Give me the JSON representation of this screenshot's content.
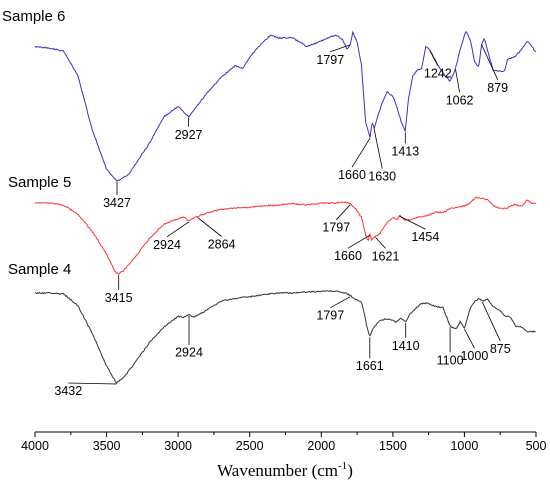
{
  "chart_data": {
    "type": "line",
    "xlabel": "Wavenumber (cm",
    "xlabel_superscript": "-1",
    "xlabel_suffix": ")",
    "ylabel": "",
    "xlim": [
      4000,
      500
    ],
    "x_reversed": true,
    "x_ticks": [
      "4000",
      "3500",
      "3000",
      "2500",
      "2000",
      "1500",
      "1000",
      "500"
    ],
    "grid": false,
    "series": [
      {
        "name": "Sample 6",
        "color": "#3333cc",
        "points": [
          [
            4000,
            0.08
          ],
          [
            3900,
            0.09
          ],
          [
            3800,
            0.11
          ],
          [
            3700,
            0.28
          ],
          [
            3600,
            0.65
          ],
          [
            3500,
            0.92
          ],
          [
            3427,
            1.0
          ],
          [
            3350,
            0.96
          ],
          [
            3200,
            0.74
          ],
          [
            3100,
            0.56
          ],
          [
            3000,
            0.49
          ],
          [
            2927,
            0.56
          ],
          [
            2880,
            0.5
          ],
          [
            2800,
            0.4
          ],
          [
            2700,
            0.29
          ],
          [
            2600,
            0.21
          ],
          [
            2550,
            0.23
          ],
          [
            2500,
            0.15
          ],
          [
            2400,
            0.04
          ],
          [
            2350,
            0.0
          ],
          [
            2300,
            0.02
          ],
          [
            2200,
            0.02
          ],
          [
            2100,
            0.08
          ],
          [
            2000,
            0.04
          ],
          [
            1900,
            0.0
          ],
          [
            1850,
            0.03
          ],
          [
            1820,
            0.1
          ],
          [
            1797,
            0.06
          ],
          [
            1780,
            -0.02
          ],
          [
            1750,
            0.05
          ],
          [
            1720,
            0.2
          ],
          [
            1690,
            0.6
          ],
          [
            1660,
            0.7
          ],
          [
            1645,
            0.6
          ],
          [
            1630,
            0.64
          ],
          [
            1610,
            0.57
          ],
          [
            1580,
            0.48
          ],
          [
            1540,
            0.39
          ],
          [
            1500,
            0.42
          ],
          [
            1470,
            0.5
          ],
          [
            1440,
            0.6
          ],
          [
            1413,
            0.66
          ],
          [
            1390,
            0.43
          ],
          [
            1360,
            0.28
          ],
          [
            1330,
            0.24
          ],
          [
            1300,
            0.23
          ],
          [
            1270,
            0.08
          ],
          [
            1242,
            0.1
          ],
          [
            1200,
            0.18
          ],
          [
            1150,
            0.26
          ],
          [
            1100,
            0.32
          ],
          [
            1062,
            0.23
          ],
          [
            1030,
            0.1
          ],
          [
            990,
            -0.03
          ],
          [
            960,
            0.03
          ],
          [
            930,
            0.18
          ],
          [
            900,
            0.22
          ],
          [
            879,
            0.06
          ],
          [
            860,
            0.02
          ],
          [
            840,
            0.1
          ],
          [
            800,
            0.24
          ],
          [
            760,
            0.25
          ],
          [
            720,
            0.25
          ],
          [
            700,
            0.17
          ],
          [
            650,
            0.15
          ],
          [
            600,
            0.1
          ],
          [
            560,
            0.04
          ],
          [
            530,
            0.08
          ],
          [
            500,
            0.12
          ]
        ]
      },
      {
        "name": "Sample 5",
        "color": "#ff3333",
        "points": [
          [
            4000,
            0.0
          ],
          [
            3900,
            0.0
          ],
          [
            3800,
            0.03
          ],
          [
            3700,
            0.16
          ],
          [
            3600,
            0.4
          ],
          [
            3500,
            0.72
          ],
          [
            3440,
            0.97
          ],
          [
            3415,
            1.0
          ],
          [
            3380,
            0.95
          ],
          [
            3300,
            0.76
          ],
          [
            3200,
            0.5
          ],
          [
            3100,
            0.3
          ],
          [
            3000,
            0.22
          ],
          [
            2960,
            0.2
          ],
          [
            2924,
            0.25
          ],
          [
            2890,
            0.21
          ],
          [
            2864,
            0.19
          ],
          [
            2800,
            0.14
          ],
          [
            2700,
            0.09
          ],
          [
            2600,
            0.07
          ],
          [
            2500,
            0.06
          ],
          [
            2400,
            0.04
          ],
          [
            2300,
            0.03
          ],
          [
            2200,
            0.01
          ],
          [
            2100,
            0.03
          ],
          [
            2000,
            0.0
          ],
          [
            1900,
            0.0
          ],
          [
            1850,
            -0.02
          ],
          [
            1810,
            0.0
          ],
          [
            1797,
            0.01
          ],
          [
            1760,
            0.08
          ],
          [
            1720,
            0.2
          ],
          [
            1690,
            0.45
          ],
          [
            1675,
            0.54
          ],
          [
            1660,
            0.44
          ],
          [
            1650,
            0.52
          ],
          [
            1621,
            0.47
          ],
          [
            1590,
            0.43
          ],
          [
            1550,
            0.3
          ],
          [
            1500,
            0.2
          ],
          [
            1470,
            0.24
          ],
          [
            1454,
            0.17
          ],
          [
            1420,
            0.24
          ],
          [
            1380,
            0.24
          ],
          [
            1330,
            0.2
          ],
          [
            1280,
            0.19
          ],
          [
            1200,
            0.13
          ],
          [
            1150,
            0.13
          ],
          [
            1100,
            0.08
          ],
          [
            1050,
            0.06
          ],
          [
            1000,
            0.04
          ],
          [
            960,
            0.0
          ],
          [
            920,
            -0.08
          ],
          [
            880,
            -0.07
          ],
          [
            840,
            -0.05
          ],
          [
            800,
            0.03
          ],
          [
            760,
            0.08
          ],
          [
            700,
            0.07
          ],
          [
            650,
            0.02
          ],
          [
            600,
            0.05
          ],
          [
            560,
            -0.05
          ],
          [
            530,
            0.01
          ],
          [
            500,
            0.0
          ]
        ]
      },
      {
        "name": "Sample 4",
        "color": "#333333",
        "points": [
          [
            4000,
            0.0
          ],
          [
            3900,
            0.0
          ],
          [
            3800,
            0.01
          ],
          [
            3700,
            0.14
          ],
          [
            3600,
            0.45
          ],
          [
            3500,
            0.81
          ],
          [
            3432,
            1.0
          ],
          [
            3380,
            0.94
          ],
          [
            3300,
            0.77
          ],
          [
            3200,
            0.55
          ],
          [
            3100,
            0.38
          ],
          [
            3000,
            0.26
          ],
          [
            2960,
            0.27
          ],
          [
            2924,
            0.24
          ],
          [
            2890,
            0.27
          ],
          [
            2800,
            0.19
          ],
          [
            2700,
            0.09
          ],
          [
            2600,
            0.06
          ],
          [
            2500,
            0.04
          ],
          [
            2400,
            0.02
          ],
          [
            2300,
            0.0
          ],
          [
            2200,
            0.0
          ],
          [
            2100,
            -0.01
          ],
          [
            2000,
            -0.02
          ],
          [
            1900,
            -0.02
          ],
          [
            1830,
            0.0
          ],
          [
            1797,
            0.03
          ],
          [
            1760,
            0.07
          ],
          [
            1720,
            0.1
          ],
          [
            1700,
            0.22
          ],
          [
            1680,
            0.39
          ],
          [
            1661,
            0.48
          ],
          [
            1640,
            0.4
          ],
          [
            1600,
            0.32
          ],
          [
            1560,
            0.29
          ],
          [
            1520,
            0.29
          ],
          [
            1480,
            0.32
          ],
          [
            1440,
            0.28
          ],
          [
            1410,
            0.32
          ],
          [
            1380,
            0.23
          ],
          [
            1340,
            0.17
          ],
          [
            1300,
            0.12
          ],
          [
            1260,
            0.11
          ],
          [
            1200,
            0.15
          ],
          [
            1150,
            0.16
          ],
          [
            1100,
            0.37
          ],
          [
            1060,
            0.4
          ],
          [
            1030,
            0.32
          ],
          [
            1000,
            0.39
          ],
          [
            960,
            0.17
          ],
          [
            930,
            0.1
          ],
          [
            900,
            0.06
          ],
          [
            875,
            0.09
          ],
          [
            840,
            0.07
          ],
          [
            800,
            0.15
          ],
          [
            760,
            0.19
          ],
          [
            720,
            0.25
          ],
          [
            680,
            0.27
          ],
          [
            640,
            0.37
          ],
          [
            600,
            0.38
          ],
          [
            560,
            0.43
          ],
          [
            500,
            0.43
          ]
        ]
      }
    ],
    "peak_labels": [
      {
        "series": 0,
        "text": "3427",
        "x": 3427
      },
      {
        "series": 0,
        "text": "2927",
        "x": 2927
      },
      {
        "series": 0,
        "text": "1797",
        "x": 1797
      },
      {
        "series": 0,
        "text": "1660",
        "x": 1660
      },
      {
        "series": 0,
        "text": "1630",
        "x": 1630
      },
      {
        "series": 0,
        "text": "1413",
        "x": 1413
      },
      {
        "series": 0,
        "text": "1242",
        "x": 1242
      },
      {
        "series": 0,
        "text": "1062",
        "x": 1062
      },
      {
        "series": 0,
        "text": "879",
        "x": 879
      },
      {
        "series": 1,
        "text": "3415",
        "x": 3415
      },
      {
        "series": 1,
        "text": "2924",
        "x": 2924
      },
      {
        "series": 1,
        "text": "2864",
        "x": 2864
      },
      {
        "series": 1,
        "text": "1797",
        "x": 1797
      },
      {
        "series": 1,
        "text": "1660",
        "x": 1660
      },
      {
        "series": 1,
        "text": "1621",
        "x": 1621
      },
      {
        "series": 1,
        "text": "1454",
        "x": 1454
      },
      {
        "series": 2,
        "text": "3432",
        "x": 3432
      },
      {
        "series": 2,
        "text": "2924",
        "x": 2924
      },
      {
        "series": 2,
        "text": "1797",
        "x": 1797
      },
      {
        "series": 2,
        "text": "1661",
        "x": 1661
      },
      {
        "series": 2,
        "text": "1410",
        "x": 1410
      },
      {
        "series": 2,
        "text": "1100",
        "x": 1100
      },
      {
        "series": 2,
        "text": "1000",
        "x": 1000
      },
      {
        "series": 2,
        "text": "875",
        "x": 875
      }
    ]
  }
}
